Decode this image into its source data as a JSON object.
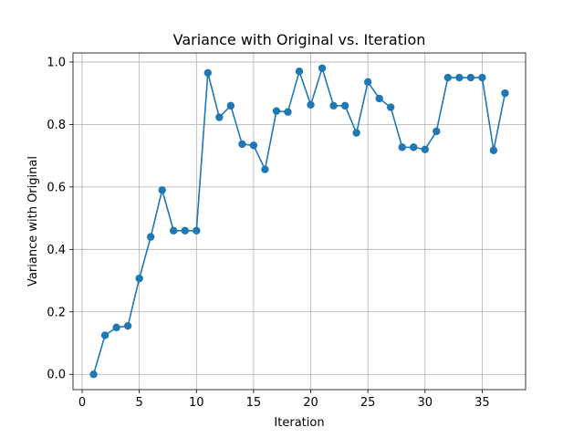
{
  "chart_data": {
    "type": "line",
    "title": "Variance with Original vs. Iteration",
    "xlabel": "Iteration",
    "ylabel": "Variance with Original",
    "xlim": [
      -0.8,
      38.8
    ],
    "ylim": [
      -0.049,
      1.029
    ],
    "xticks": [
      0,
      5,
      10,
      15,
      20,
      25,
      30,
      35
    ],
    "yticks": [
      0.0,
      0.2,
      0.4,
      0.6,
      0.8,
      1.0
    ],
    "ytick_labels": [
      "0.0",
      "0.2",
      "0.4",
      "0.6",
      "0.8",
      "1.0"
    ],
    "grid": true,
    "marker": "circle",
    "color": "#1f77b4",
    "x": [
      1,
      2,
      3,
      4,
      5,
      6,
      7,
      8,
      9,
      10,
      11,
      12,
      13,
      14,
      15,
      16,
      17,
      18,
      19,
      20,
      21,
      22,
      23,
      24,
      25,
      26,
      27,
      28,
      29,
      30,
      31,
      32,
      33,
      34,
      35,
      36,
      37
    ],
    "y": [
      0.0,
      0.125,
      0.15,
      0.155,
      0.307,
      0.44,
      0.59,
      0.46,
      0.46,
      0.46,
      0.965,
      0.823,
      0.86,
      0.737,
      0.733,
      0.656,
      0.843,
      0.84,
      0.97,
      0.863,
      0.98,
      0.86,
      0.86,
      0.773,
      0.936,
      0.883,
      0.855,
      0.727,
      0.727,
      0.72,
      0.778,
      0.95,
      0.95,
      0.95,
      0.95,
      0.717,
      0.9
    ]
  }
}
